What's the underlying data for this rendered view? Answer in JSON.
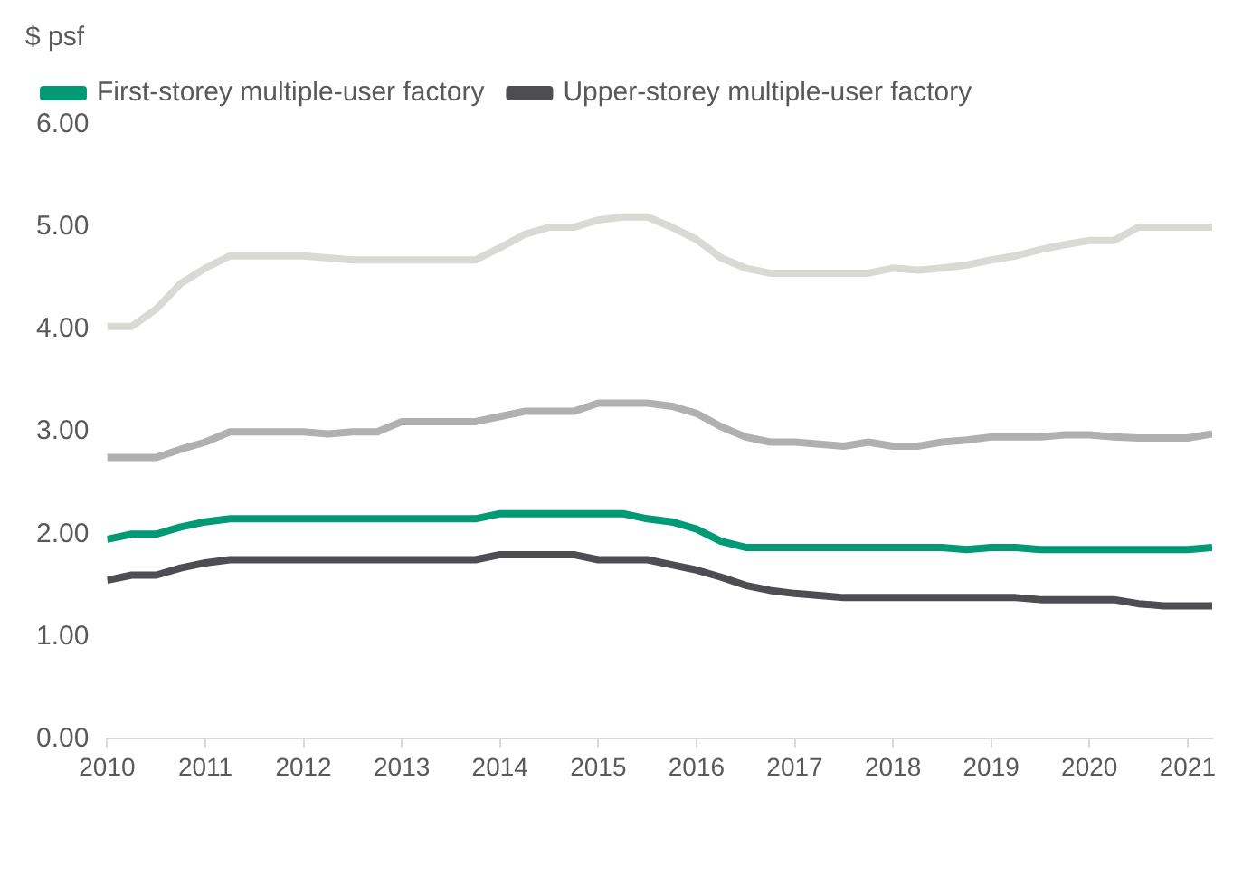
{
  "chart_data": {
    "type": "line",
    "ylabel": "$ psf",
    "legend": "top",
    "grid": false,
    "marker": "none",
    "line_style": "solid",
    "x": [
      2010,
      2010.25,
      2010.5,
      2010.75,
      2011,
      2011.25,
      2011.5,
      2011.75,
      2012,
      2012.25,
      2012.5,
      2012.75,
      2013,
      2013.25,
      2013.5,
      2013.75,
      2014,
      2014.25,
      2014.5,
      2014.75,
      2015,
      2015.25,
      2015.5,
      2015.75,
      2016,
      2016.25,
      2016.5,
      2016.75,
      2017,
      2017.25,
      2017.5,
      2017.75,
      2018,
      2018.25,
      2018.5,
      2018.75,
      2019,
      2019.25,
      2019.5,
      2019.75,
      2020,
      2020.25,
      2020.5,
      2020.75,
      2021,
      2021.25
    ],
    "xlim": [
      2010,
      2021.25
    ],
    "xticks": [
      2010,
      2011,
      2012,
      2013,
      2014,
      2015,
      2016,
      2017,
      2018,
      2019,
      2020,
      2021
    ],
    "ylim": [
      0,
      6
    ],
    "yticks": [
      {
        "value": 0,
        "label": "0.00"
      },
      {
        "value": 1,
        "label": "1.00"
      },
      {
        "value": 2,
        "label": "2.00"
      },
      {
        "value": 3,
        "label": "3.00"
      },
      {
        "value": 4,
        "label": "4.00"
      },
      {
        "value": 5,
        "label": "5.00"
      },
      {
        "value": 6,
        "label": "6.00"
      }
    ],
    "series": [
      {
        "name": "First-storey multiple-user factory",
        "color": "#009a74",
        "values": [
          1.95,
          2.0,
          2.0,
          2.07,
          2.12,
          2.15,
          2.15,
          2.15,
          2.15,
          2.15,
          2.15,
          2.15,
          2.15,
          2.15,
          2.15,
          2.15,
          2.2,
          2.2,
          2.2,
          2.2,
          2.2,
          2.2,
          2.15,
          2.12,
          2.05,
          1.93,
          1.87,
          1.87,
          1.87,
          1.87,
          1.87,
          1.87,
          1.87,
          1.87,
          1.87,
          1.85,
          1.87,
          1.87,
          1.85,
          1.85,
          1.85,
          1.85,
          1.85,
          1.85,
          1.85,
          1.87
        ]
      },
      {
        "name": "Upper-storey multiple-user factory",
        "color": "#4d4d52",
        "values": [
          1.55,
          1.6,
          1.6,
          1.67,
          1.72,
          1.75,
          1.75,
          1.75,
          1.75,
          1.75,
          1.75,
          1.75,
          1.75,
          1.75,
          1.75,
          1.75,
          1.8,
          1.8,
          1.8,
          1.8,
          1.75,
          1.75,
          1.75,
          1.7,
          1.65,
          1.58,
          1.5,
          1.45,
          1.42,
          1.4,
          1.38,
          1.38,
          1.38,
          1.38,
          1.38,
          1.38,
          1.38,
          1.38,
          1.36,
          1.36,
          1.36,
          1.36,
          1.32,
          1.3,
          1.3,
          1.3
        ]
      },
      {
        "color": "#d9d9d6",
        "values": [
          4.03,
          4.03,
          4.2,
          4.45,
          4.6,
          4.72,
          4.72,
          4.72,
          4.72,
          4.7,
          4.68,
          4.68,
          4.68,
          4.68,
          4.68,
          4.68,
          4.8,
          4.93,
          5.0,
          5.0,
          5.07,
          5.1,
          5.1,
          5.0,
          4.88,
          4.7,
          4.6,
          4.55,
          4.55,
          4.55,
          4.55,
          4.55,
          4.6,
          4.58,
          4.6,
          4.63,
          4.68,
          4.72,
          4.78,
          4.83,
          4.87,
          4.87,
          5.0,
          5.0,
          5.0,
          5.0
        ]
      },
      {
        "color": "#b0b0b0",
        "values": [
          2.75,
          2.75,
          2.75,
          2.83,
          2.9,
          3.0,
          3.0,
          3.0,
          3.0,
          2.98,
          3.0,
          3.0,
          3.1,
          3.1,
          3.1,
          3.1,
          3.15,
          3.2,
          3.2,
          3.2,
          3.28,
          3.28,
          3.28,
          3.25,
          3.18,
          3.05,
          2.95,
          2.9,
          2.9,
          2.88,
          2.86,
          2.9,
          2.86,
          2.86,
          2.9,
          2.92,
          2.95,
          2.95,
          2.95,
          2.97,
          2.97,
          2.95,
          2.94,
          2.94,
          2.94,
          2.98
        ]
      }
    ]
  }
}
